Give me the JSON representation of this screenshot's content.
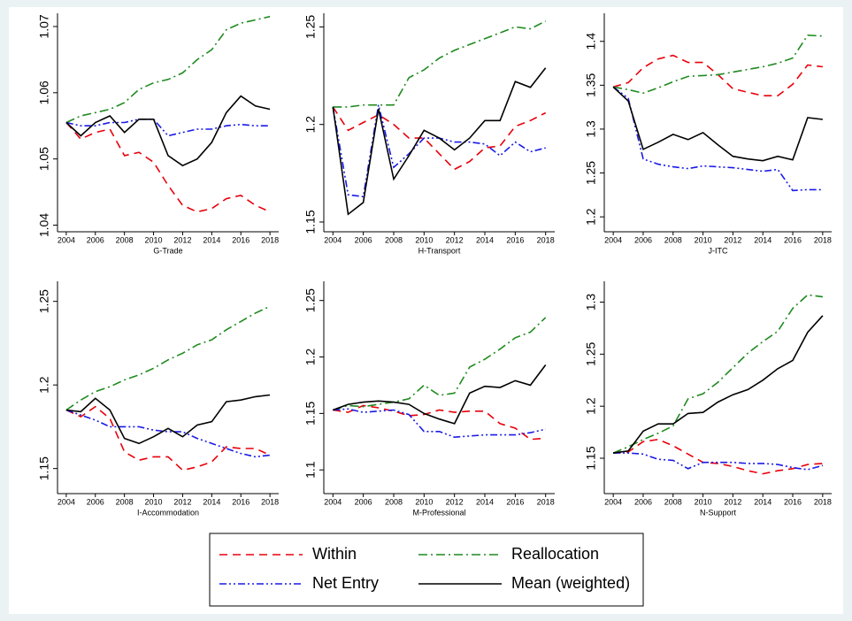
{
  "chart_data": [
    {
      "type": "line",
      "xlabel": "G-Trade",
      "x": [
        2004,
        2005,
        2006,
        2007,
        2008,
        2009,
        2010,
        2011,
        2012,
        2013,
        2014,
        2015,
        2016,
        2017,
        2018
      ],
      "xlim": [
        2003.4,
        2018.6
      ],
      "xticks": [
        2004,
        2006,
        2008,
        2010,
        2012,
        2014,
        2016,
        2018
      ],
      "ylim": [
        1.039,
        1.072
      ],
      "yticks": [
        1.04,
        1.05,
        1.06,
        1.07
      ],
      "grid": false,
      "series": [
        {
          "name": "Within",
          "color": "#e8000b",
          "linestyle": "dash",
          "values": [
            1.0555,
            1.053,
            1.054,
            1.0545,
            1.0505,
            1.051,
            1.0495,
            1.046,
            1.043,
            1.042,
            1.0425,
            1.044,
            1.0445,
            1.043,
            1.042
          ]
        },
        {
          "name": "Reallocation",
          "color": "#1f8a1f",
          "linestyle": "dashdot",
          "values": [
            1.0555,
            1.0565,
            1.057,
            1.0575,
            1.0585,
            1.0605,
            1.0615,
            1.062,
            1.063,
            1.065,
            1.0665,
            1.0695,
            1.0705,
            1.071,
            1.0715
          ]
        },
        {
          "name": "Net Entry",
          "color": "#1a1ae6",
          "linestyle": "dashdotdot",
          "values": [
            1.0555,
            1.055,
            1.055,
            1.0555,
            1.0555,
            1.056,
            1.056,
            1.0535,
            1.054,
            1.0545,
            1.0545,
            1.055,
            1.0552,
            1.055,
            1.055
          ]
        },
        {
          "name": "Mean (weighted)",
          "color": "#000000",
          "linestyle": "solid",
          "values": [
            1.0555,
            1.0535,
            1.0555,
            1.0565,
            1.054,
            1.056,
            1.056,
            1.0505,
            1.049,
            1.05,
            1.0525,
            1.057,
            1.0595,
            1.058,
            1.0575
          ]
        }
      ]
    },
    {
      "type": "line",
      "xlabel": "H-Transport",
      "x": [
        2004,
        2005,
        2006,
        2007,
        2008,
        2009,
        2010,
        2011,
        2012,
        2013,
        2014,
        2015,
        2016,
        2017,
        2018
      ],
      "xlim": [
        2003.4,
        2018.6
      ],
      "xticks": [
        2004,
        2006,
        2008,
        2010,
        2012,
        2014,
        2016,
        2018
      ],
      "ylim": [
        1.145,
        1.257
      ],
      "yticks": [
        1.15,
        1.2,
        1.25
      ],
      "grid": false,
      "series": [
        {
          "name": "Within",
          "color": "#e8000b",
          "linestyle": "dash",
          "values": [
            1.209,
            1.197,
            1.201,
            1.205,
            1.2,
            1.193,
            1.193,
            1.185,
            1.177,
            1.181,
            1.188,
            1.189,
            1.199,
            1.202,
            1.206
          ]
        },
        {
          "name": "Reallocation",
          "color": "#1f8a1f",
          "linestyle": "dashdot",
          "values": [
            1.209,
            1.209,
            1.21,
            1.21,
            1.21,
            1.224,
            1.228,
            1.234,
            1.238,
            1.241,
            1.244,
            1.247,
            1.25,
            1.249,
            1.253
          ]
        },
        {
          "name": "Net Entry",
          "color": "#1a1ae6",
          "linestyle": "dashdotdot",
          "values": [
            1.209,
            1.164,
            1.163,
            1.21,
            1.178,
            1.185,
            1.193,
            1.193,
            1.191,
            1.191,
            1.19,
            1.184,
            1.191,
            1.186,
            1.188
          ]
        },
        {
          "name": "Mean (weighted)",
          "color": "#000000",
          "linestyle": "solid",
          "values": [
            1.209,
            1.154,
            1.16,
            1.208,
            1.172,
            1.184,
            1.197,
            1.193,
            1.187,
            1.193,
            1.202,
            1.202,
            1.222,
            1.219,
            1.229
          ]
        }
      ]
    },
    {
      "type": "line",
      "xlabel": "J-ITC",
      "x": [
        2004,
        2005,
        2006,
        2007,
        2008,
        2009,
        2010,
        2011,
        2012,
        2013,
        2014,
        2015,
        2016,
        2017,
        2018
      ],
      "xlim": [
        2003.4,
        2018.6
      ],
      "xticks": [
        2004,
        2006,
        2008,
        2010,
        2012,
        2014,
        2016,
        2018
      ],
      "ylim": [
        1.183,
        1.432
      ],
      "yticks": [
        1.2,
        1.25,
        1.3,
        1.35,
        1.4
      ],
      "grid": false,
      "series": [
        {
          "name": "Within",
          "color": "#e8000b",
          "linestyle": "dash",
          "values": [
            1.348,
            1.353,
            1.37,
            1.38,
            1.384,
            1.376,
            1.376,
            1.362,
            1.346,
            1.342,
            1.338,
            1.338,
            1.351,
            1.373,
            1.371
          ]
        },
        {
          "name": "Reallocation",
          "color": "#1f8a1f",
          "linestyle": "dashdot",
          "values": [
            1.348,
            1.345,
            1.341,
            1.347,
            1.354,
            1.36,
            1.361,
            1.362,
            1.365,
            1.368,
            1.371,
            1.375,
            1.381,
            1.407,
            1.406
          ]
        },
        {
          "name": "Net Entry",
          "color": "#1a1ae6",
          "linestyle": "dashdotdot",
          "values": [
            1.348,
            1.335,
            1.266,
            1.26,
            1.257,
            1.255,
            1.258,
            1.257,
            1.256,
            1.254,
            1.252,
            1.254,
            1.23,
            1.231,
            1.231
          ]
        },
        {
          "name": "Mean (weighted)",
          "color": "#000000",
          "linestyle": "solid",
          "values": [
            1.348,
            1.332,
            1.277,
            1.285,
            1.294,
            1.288,
            1.296,
            1.282,
            1.269,
            1.266,
            1.264,
            1.269,
            1.265,
            1.313,
            1.311
          ]
        }
      ]
    },
    {
      "type": "line",
      "xlabel": "I-Accommodation",
      "x": [
        2004,
        2005,
        2006,
        2007,
        2008,
        2009,
        2010,
        2011,
        2012,
        2013,
        2014,
        2015,
        2016,
        2017,
        2018
      ],
      "xlim": [
        2003.4,
        2018.6
      ],
      "xticks": [
        2004,
        2006,
        2008,
        2010,
        2012,
        2014,
        2016,
        2018
      ],
      "ylim": [
        1.135,
        1.262
      ],
      "yticks": [
        1.15,
        1.2,
        1.25
      ],
      "grid": false,
      "series": [
        {
          "name": "Within",
          "color": "#e8000b",
          "linestyle": "dash",
          "values": [
            1.185,
            1.181,
            1.187,
            1.18,
            1.16,
            1.155,
            1.157,
            1.157,
            1.149,
            1.151,
            1.154,
            1.163,
            1.162,
            1.162,
            1.158
          ]
        },
        {
          "name": "Reallocation",
          "color": "#1f8a1f",
          "linestyle": "dashdot",
          "values": [
            1.185,
            1.191,
            1.196,
            1.199,
            1.203,
            1.206,
            1.21,
            1.215,
            1.219,
            1.224,
            1.227,
            1.233,
            1.238,
            1.243,
            1.247
          ]
        },
        {
          "name": "Net Entry",
          "color": "#1a1ae6",
          "linestyle": "dashdotdot",
          "values": [
            1.185,
            1.182,
            1.179,
            1.175,
            1.175,
            1.175,
            1.173,
            1.172,
            1.172,
            1.168,
            1.165,
            1.162,
            1.159,
            1.157,
            1.158
          ]
        },
        {
          "name": "Mean (weighted)",
          "color": "#000000",
          "linestyle": "solid",
          "values": [
            1.185,
            1.184,
            1.192,
            1.185,
            1.168,
            1.165,
            1.169,
            1.174,
            1.169,
            1.176,
            1.178,
            1.19,
            1.191,
            1.193,
            1.194
          ]
        }
      ]
    },
    {
      "type": "line",
      "xlabel": "M-Professional",
      "x": [
        2004,
        2005,
        2006,
        2007,
        2008,
        2009,
        2010,
        2011,
        2012,
        2013,
        2014,
        2015,
        2016,
        2017,
        2018
      ],
      "xlim": [
        2003.4,
        2018.6
      ],
      "xticks": [
        2004,
        2006,
        2008,
        2010,
        2012,
        2014,
        2016,
        2018
      ],
      "ylim": [
        1.079,
        1.267
      ],
      "yticks": [
        1.1,
        1.15,
        1.2,
        1.25
      ],
      "grid": false,
      "series": [
        {
          "name": "Within",
          "color": "#e8000b",
          "linestyle": "dash",
          "values": [
            1.153,
            1.151,
            1.157,
            1.155,
            1.152,
            1.148,
            1.149,
            1.153,
            1.151,
            1.152,
            1.152,
            1.141,
            1.137,
            1.127,
            1.128
          ]
        },
        {
          "name": "Reallocation",
          "color": "#1f8a1f",
          "linestyle": "dashdot",
          "values": [
            1.153,
            1.157,
            1.156,
            1.158,
            1.16,
            1.163,
            1.175,
            1.166,
            1.168,
            1.191,
            1.198,
            1.207,
            1.217,
            1.222,
            1.235
          ]
        },
        {
          "name": "Net Entry",
          "color": "#1a1ae6",
          "linestyle": "dashdotdot",
          "values": [
            1.153,
            1.154,
            1.151,
            1.152,
            1.153,
            1.149,
            1.134,
            1.134,
            1.129,
            1.13,
            1.131,
            1.131,
            1.131,
            1.133,
            1.136
          ]
        },
        {
          "name": "Mean (weighted)",
          "color": "#000000",
          "linestyle": "solid",
          "values": [
            1.153,
            1.158,
            1.16,
            1.161,
            1.16,
            1.158,
            1.15,
            1.145,
            1.141,
            1.168,
            1.174,
            1.173,
            1.179,
            1.175,
            1.193
          ]
        }
      ]
    },
    {
      "type": "line",
      "xlabel": "N-Support",
      "x": [
        2004,
        2005,
        2006,
        2007,
        2008,
        2009,
        2010,
        2011,
        2012,
        2013,
        2014,
        2015,
        2016,
        2017,
        2018
      ],
      "xlim": [
        2003.4,
        2018.6
      ],
      "xticks": [
        2004,
        2006,
        2008,
        2010,
        2012,
        2014,
        2016,
        2018
      ],
      "ylim": [
        1.116,
        1.32
      ],
      "yticks": [
        1.15,
        1.2,
        1.25,
        1.3
      ],
      "grid": false,
      "series": [
        {
          "name": "Within",
          "color": "#e8000b",
          "linestyle": "dash",
          "values": [
            1.155,
            1.156,
            1.166,
            1.168,
            1.162,
            1.154,
            1.146,
            1.145,
            1.142,
            1.138,
            1.135,
            1.138,
            1.14,
            1.144,
            1.145
          ]
        },
        {
          "name": "Reallocation",
          "color": "#1f8a1f",
          "linestyle": "dashdot",
          "values": [
            1.155,
            1.161,
            1.168,
            1.174,
            1.181,
            1.207,
            1.212,
            1.223,
            1.237,
            1.251,
            1.262,
            1.272,
            1.294,
            1.307,
            1.305
          ]
        },
        {
          "name": "Net Entry",
          "color": "#1a1ae6",
          "linestyle": "dashdotdot",
          "values": [
            1.155,
            1.155,
            1.154,
            1.149,
            1.148,
            1.14,
            1.146,
            1.146,
            1.146,
            1.145,
            1.145,
            1.144,
            1.141,
            1.139,
            1.143
          ]
        },
        {
          "name": "Mean (weighted)",
          "color": "#000000",
          "linestyle": "solid",
          "values": [
            1.155,
            1.157,
            1.176,
            1.183,
            1.183,
            1.193,
            1.194,
            1.204,
            1.211,
            1.216,
            1.225,
            1.236,
            1.244,
            1.271,
            1.287
          ]
        }
      ]
    }
  ]
}
